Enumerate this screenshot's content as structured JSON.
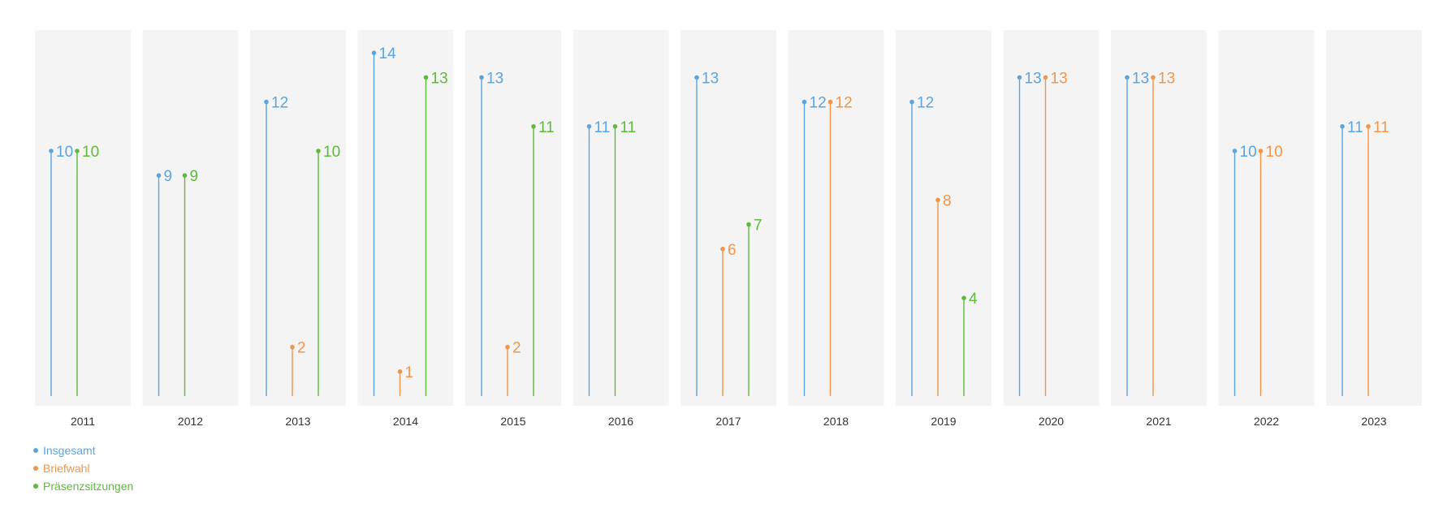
{
  "chart_data": {
    "type": "lollipop",
    "categories": [
      "2011",
      "2012",
      "2013",
      "2014",
      "2015",
      "2016",
      "2017",
      "2018",
      "2019",
      "2020",
      "2021",
      "2022",
      "2023"
    ],
    "ylim": [
      0,
      14
    ],
    "grid": false,
    "legend_position": "bottom-left",
    "series": [
      {
        "name": "Insgesamt",
        "color": "#5aa5e0",
        "values": [
          10,
          9,
          12,
          14,
          13,
          11,
          13,
          12,
          12,
          13,
          13,
          10,
          11
        ]
      },
      {
        "name": "Briefwahl",
        "color": "#f0954a",
        "values": [
          null,
          null,
          2,
          1,
          2,
          null,
          6,
          12,
          8,
          13,
          13,
          10,
          11
        ]
      },
      {
        "name": "Präsenzsitzungen",
        "color": "#5dba3b",
        "values": [
          10,
          9,
          10,
          13,
          11,
          11,
          7,
          null,
          4,
          null,
          null,
          null,
          null
        ]
      }
    ]
  },
  "colors": {
    "panel_background": "#f4f4f4",
    "axis_label": "#333333"
  }
}
